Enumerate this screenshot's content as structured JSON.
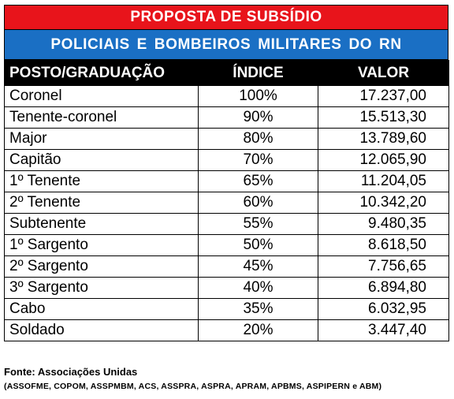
{
  "title": "PROPOSTA DE SUBSÍDIO",
  "subtitle": "POLICIAIS E BOMBEIROS MILITARES DO RN",
  "columns": [
    "POSTO/GRADUAÇÃO",
    "ÍNDICE",
    "VALOR"
  ],
  "rows": [
    {
      "posto": "Coronel",
      "indice": "100%",
      "valor": "17.237,00"
    },
    {
      "posto": "Tenente-coronel",
      "indice": "90%",
      "valor": "15.513,30"
    },
    {
      "posto": "Major",
      "indice": "80%",
      "valor": "13.789,60"
    },
    {
      "posto": "Capitão",
      "indice": "70%",
      "valor": "12.065,90"
    },
    {
      "posto": "1º Tenente",
      "indice": "65%",
      "valor": "11.204,05"
    },
    {
      "posto": "2º Tenente",
      "indice": "60%",
      "valor": "10.342,20"
    },
    {
      "posto": "Subtenente",
      "indice": "55%",
      "valor": "9.480,35"
    },
    {
      "posto": "1º Sargento",
      "indice": "50%",
      "valor": "8.618,50"
    },
    {
      "posto": "2º Sargento",
      "indice": "45%",
      "valor": "7.756,65"
    },
    {
      "posto": "3º Sargento",
      "indice": "40%",
      "valor": "6.894,80"
    },
    {
      "posto": "Cabo",
      "indice": "35%",
      "valor": "6.032,95"
    },
    {
      "posto": "Soldado",
      "indice": "20%",
      "valor": "3.447,40"
    }
  ],
  "footer": {
    "source": "Fonte: Associações Unidas",
    "associations": "(ASSOFME, COPOM, ASSPMBM, ACS, ASSPRA, ASPRA, APRAM, APBMS, ASPIPERN e ABM)"
  },
  "colors": {
    "title_bg": "#e8141b",
    "subtitle_bg": "#1a6fc4",
    "header_bg": "#000000"
  }
}
